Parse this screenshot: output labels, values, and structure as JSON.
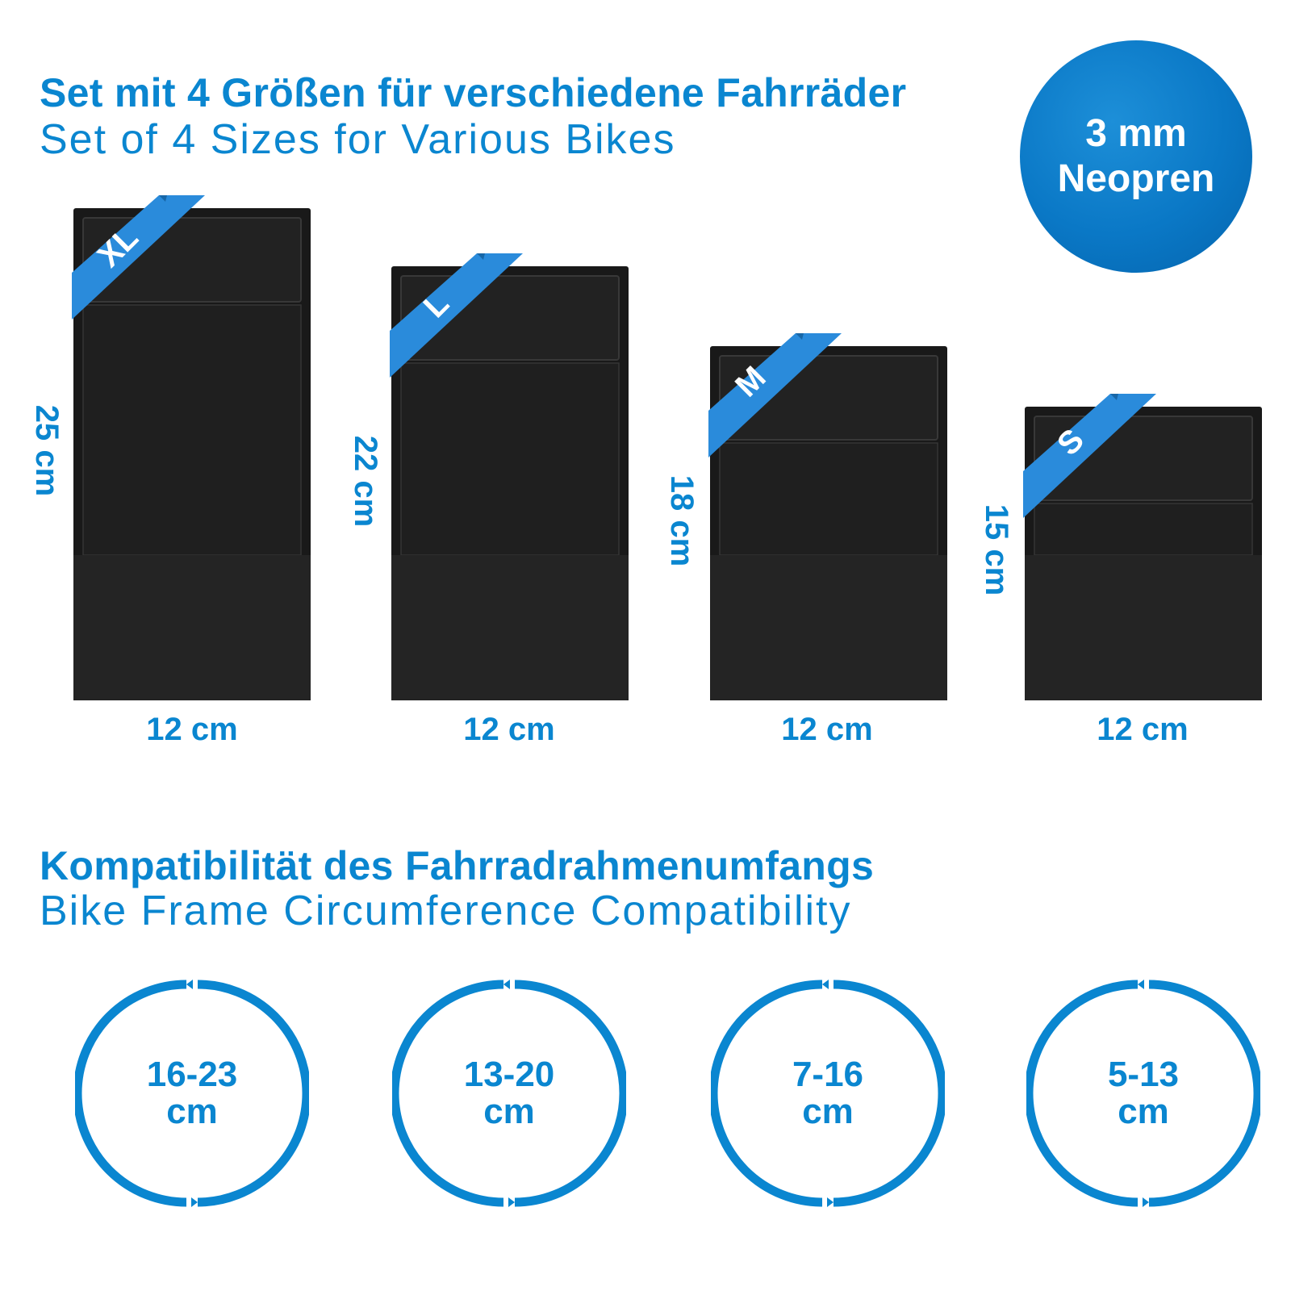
{
  "section_sizes": {
    "title_de": "Set mit 4 Größen für verschiedene Fahrräder",
    "title_en": "Set of 4 Sizes for Various Bikes"
  },
  "badge": {
    "line1": "3 mm",
    "line2": "Neopren"
  },
  "sizes": [
    {
      "tag": "XL",
      "height": "25 cm",
      "width": "12 cm"
    },
    {
      "tag": "L",
      "height": "22 cm",
      "width": "12 cm"
    },
    {
      "tag": "M",
      "height": "18 cm",
      "width": "12 cm"
    },
    {
      "tag": "S",
      "height": "15 cm",
      "width": "12 cm"
    }
  ],
  "section_compat": {
    "title_de": "Kompatibilität des Fahrradrahmenumfangs",
    "title_en": "Bike Frame Circumference Compatibility"
  },
  "circumferences": [
    {
      "range": "16-23",
      "unit": "cm"
    },
    {
      "range": "13-20",
      "unit": "cm"
    },
    {
      "range": "7-16",
      "unit": "cm"
    },
    {
      "range": "5-13",
      "unit": "cm"
    }
  ],
  "colors": {
    "accent": "#0a86d0",
    "ribbon": "#2a8bdb",
    "sleeve": "#1d1d1d"
  }
}
